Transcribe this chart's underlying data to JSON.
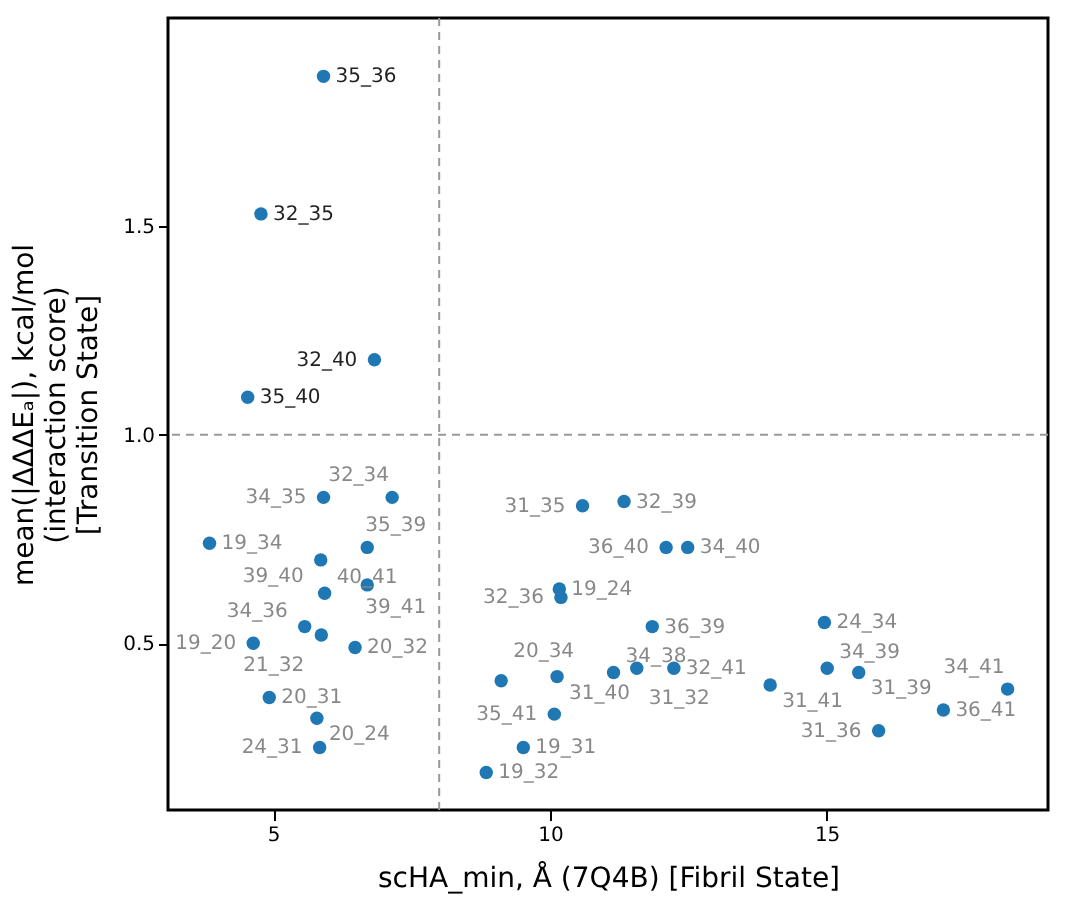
{
  "chart_data": {
    "type": "scatter",
    "xlabel": "scHA_min, Å (7Q4B)   [Fibril State]",
    "ylabel": "mean(|ΔΔΔEₐ|), kcal/mol\n(interaction score)\n[Transition State]",
    "x": [
      5.91,
      4.78,
      6.83,
      4.54,
      5.91,
      7.15,
      3.85,
      6.7,
      5.86,
      6.7,
      5.93,
      5.57,
      5.87,
      4.64,
      6.48,
      4.93,
      5.79,
      5.84,
      9.12,
      8.85,
      9.52,
      10.59,
      11.34,
      12.1,
      12.49,
      10.17,
      10.2,
      11.85,
      14.96,
      10.13,
      11.15,
      11.57,
      12.24,
      13.98,
      15.01,
      15.58,
      18.27,
      17.11,
      15.94,
      10.08
    ],
    "values": [
      1.86,
      1.53,
      1.18,
      1.09,
      0.85,
      0.85,
      0.74,
      0.73,
      0.7,
      0.64,
      0.62,
      0.54,
      0.52,
      0.5,
      0.49,
      0.37,
      0.32,
      0.25,
      0.41,
      0.19,
      0.25,
      0.83,
      0.84,
      0.73,
      0.73,
      0.63,
      0.61,
      0.54,
      0.55,
      0.42,
      0.43,
      0.44,
      0.44,
      0.4,
      0.44,
      0.43,
      0.39,
      0.34,
      0.29,
      0.33
    ],
    "value_labels": [
      "35_36",
      "32_35",
      "32_40",
      "35_40",
      "34_35",
      "32_34",
      "19_34",
      "35_39",
      "39_40",
      "39_41",
      "40_41",
      "34_36",
      "21_32",
      "19_20",
      "20_32",
      "20_31",
      "20_24",
      "24_31",
      "20_34",
      "19_32",
      "19_31",
      "31_35",
      "32_39",
      "36_40",
      "34_40",
      "19_24",
      "32_36",
      "36_39",
      "24_34",
      "31_40",
      "34_38",
      "31_32",
      "32_41",
      "31_41",
      "34_39",
      "31_39",
      "34_41",
      "36_41",
      "31_36",
      "35_41"
    ],
    "color": "#1f77b4",
    "marker": "circle",
    "xlim": [
      3.1,
      19.0
    ],
    "xticks": [
      5,
      10,
      15
    ],
    "ylim": [
      0.1,
      2.0
    ],
    "yticks": [
      0.5,
      {
        "value": 1,
        "label": "1.0"
      },
      1.5
    ],
    "ref_lines": [
      {
        "axis": "y",
        "value": 1.0,
        "line_style": "dashed",
        "color": "#999999"
      },
      {
        "axis": "x",
        "value": 8.0,
        "line_style": "dashed",
        "color": "#999999"
      }
    ]
  }
}
